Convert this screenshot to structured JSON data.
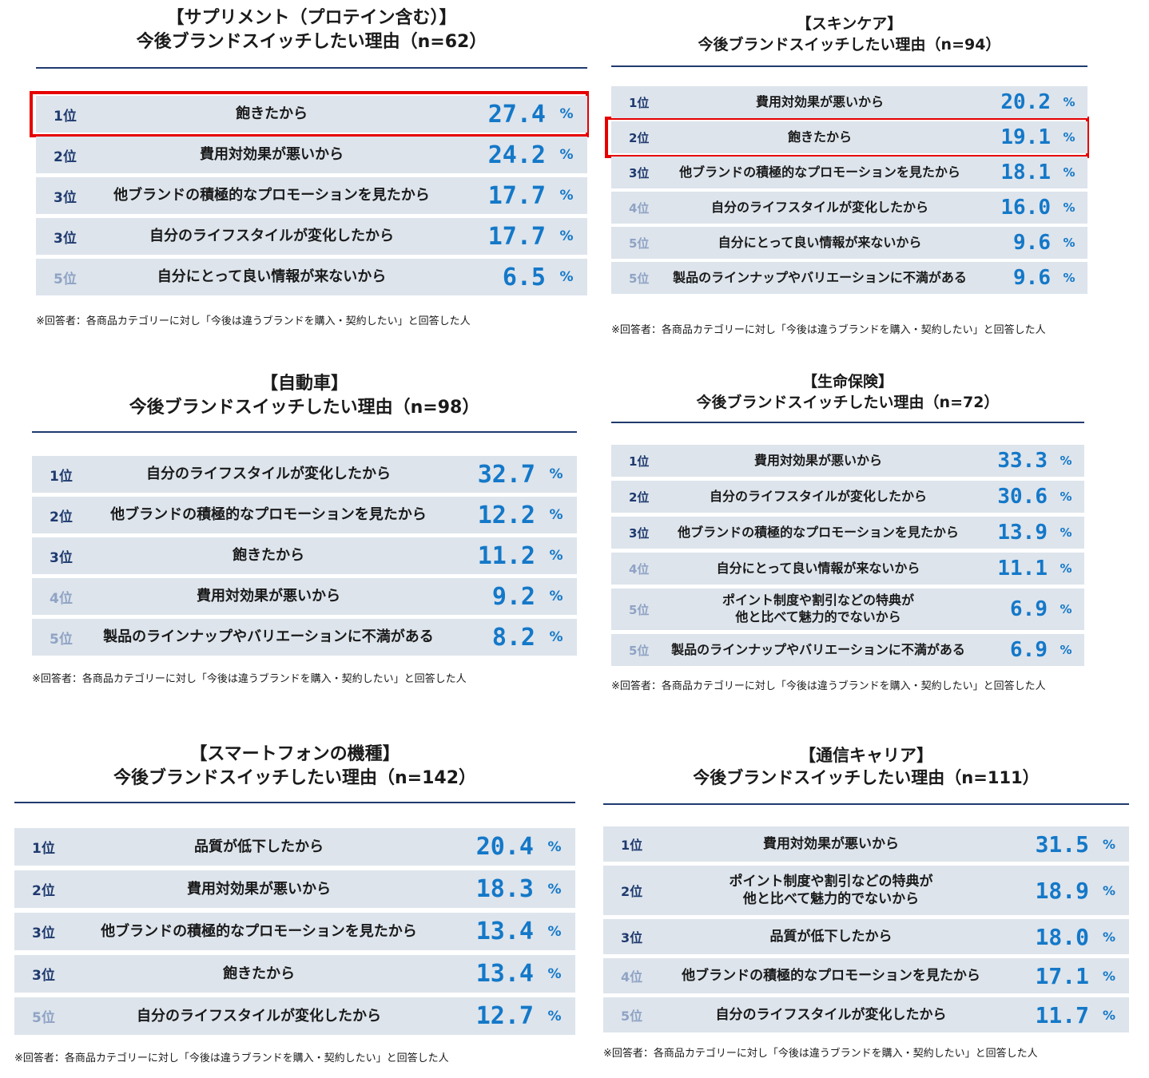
{
  "footnote": "※回答者：各商品カテゴリーに対し「今後は違うブランドを購入・契約したい」と回答した人",
  "percent_sign": "%",
  "chart_data": [
    {
      "type": "table",
      "category": "【サプリメント（プロテイン含む）】",
      "subtitle": "今後ブランドスイッチしたい理由（n=62）",
      "rows": [
        {
          "rank": "1位",
          "reason": [
            "飽きたから"
          ],
          "value": "27.4",
          "highlight": true
        },
        {
          "rank": "2位",
          "reason": [
            "費用対効果が悪いから"
          ],
          "value": "24.2"
        },
        {
          "rank": "3位",
          "reason": [
            "他ブランドの積極的なプロモーションを見たから"
          ],
          "value": "17.7"
        },
        {
          "rank": "3位",
          "reason": [
            "自分のライフスタイルが変化したから"
          ],
          "value": "17.7"
        },
        {
          "rank": "5位",
          "reason": [
            "自分にとって良い情報が来ないから"
          ],
          "value": "6.5",
          "faded": true
        }
      ]
    },
    {
      "type": "table",
      "category": "【スキンケア】",
      "subtitle": "今後ブランドスイッチしたい理由（n=94）",
      "rows": [
        {
          "rank": "1位",
          "reason": [
            "費用対効果が悪いから"
          ],
          "value": "20.2"
        },
        {
          "rank": "2位",
          "reason": [
            "飽きたから"
          ],
          "value": "19.1",
          "highlight": true
        },
        {
          "rank": "3位",
          "reason": [
            "他ブランドの積極的なプロモーションを見たから"
          ],
          "value": "18.1"
        },
        {
          "rank": "4位",
          "reason": [
            "自分のライフスタイルが変化したから"
          ],
          "value": "16.0",
          "faded": true
        },
        {
          "rank": "5位",
          "reason": [
            "自分にとって良い情報が来ないから"
          ],
          "value": "9.6",
          "faded": true
        },
        {
          "rank": "5位",
          "reason": [
            "製品のラインナップやバリエーションに不満がある"
          ],
          "value": "9.6",
          "faded": true
        }
      ]
    },
    {
      "type": "table",
      "category": "【自動車】",
      "subtitle": "今後ブランドスイッチしたい理由（n=98）",
      "rows": [
        {
          "rank": "1位",
          "reason": [
            "自分のライフスタイルが変化したから"
          ],
          "value": "32.7"
        },
        {
          "rank": "2位",
          "reason": [
            "他ブランドの積極的なプロモーションを見たから"
          ],
          "value": "12.2"
        },
        {
          "rank": "3位",
          "reason": [
            "飽きたから"
          ],
          "value": "11.2"
        },
        {
          "rank": "4位",
          "reason": [
            "費用対効果が悪いから"
          ],
          "value": "9.2",
          "faded": true
        },
        {
          "rank": "5位",
          "reason": [
            "製品のラインナップやバリエーションに不満がある"
          ],
          "value": "8.2",
          "faded": true
        }
      ]
    },
    {
      "type": "table",
      "category": "【生命保険】",
      "subtitle": "今後ブランドスイッチしたい理由（n=72）",
      "rows": [
        {
          "rank": "1位",
          "reason": [
            "費用対効果が悪いから"
          ],
          "value": "33.3"
        },
        {
          "rank": "2位",
          "reason": [
            "自分のライフスタイルが変化したから"
          ],
          "value": "30.6"
        },
        {
          "rank": "3位",
          "reason": [
            "他ブランドの積極的なプロモーションを見たから"
          ],
          "value": "13.9"
        },
        {
          "rank": "4位",
          "reason": [
            "自分にとって良い情報が来ないから"
          ],
          "value": "11.1",
          "faded": true
        },
        {
          "rank": "5位",
          "reason": [
            "ポイント制度や割引などの特典が",
            "他と比べて魅力的でないから"
          ],
          "value": "6.9",
          "faded": true
        },
        {
          "rank": "5位",
          "reason": [
            "製品のラインナップやバリエーションに不満がある"
          ],
          "value": "6.9",
          "faded": true
        }
      ]
    },
    {
      "type": "table",
      "category": "【スマートフォンの機種】",
      "subtitle": "今後ブランドスイッチしたい理由（n=142）",
      "rows": [
        {
          "rank": "1位",
          "reason": [
            "品質が低下したから"
          ],
          "value": "20.4"
        },
        {
          "rank": "2位",
          "reason": [
            "費用対効果が悪いから"
          ],
          "value": "18.3"
        },
        {
          "rank": "3位",
          "reason": [
            "他ブランドの積極的なプロモーションを見たから"
          ],
          "value": "13.4"
        },
        {
          "rank": "3位",
          "reason": [
            "飽きたから"
          ],
          "value": "13.4"
        },
        {
          "rank": "5位",
          "reason": [
            "自分のライフスタイルが変化したから"
          ],
          "value": "12.7",
          "faded": true
        }
      ]
    },
    {
      "type": "table",
      "category": "【通信キャリア】",
      "subtitle": "今後ブランドスイッチしたい理由（n=111）",
      "rows": [
        {
          "rank": "1位",
          "reason": [
            "費用対効果が悪いから"
          ],
          "value": "31.5"
        },
        {
          "rank": "2位",
          "reason": [
            "ポイント制度や割引などの特典が",
            "他と比べて魅力的でないから"
          ],
          "value": "18.9"
        },
        {
          "rank": "3位",
          "reason": [
            "品質が低下したから"
          ],
          "value": "18.0"
        },
        {
          "rank": "4位",
          "reason": [
            "他ブランドの積極的なプロモーションを見たから"
          ],
          "value": "17.1",
          "faded": true
        },
        {
          "rank": "5位",
          "reason": [
            "自分のライフスタイルが変化したから"
          ],
          "value": "11.7",
          "faded": true
        }
      ]
    }
  ]
}
